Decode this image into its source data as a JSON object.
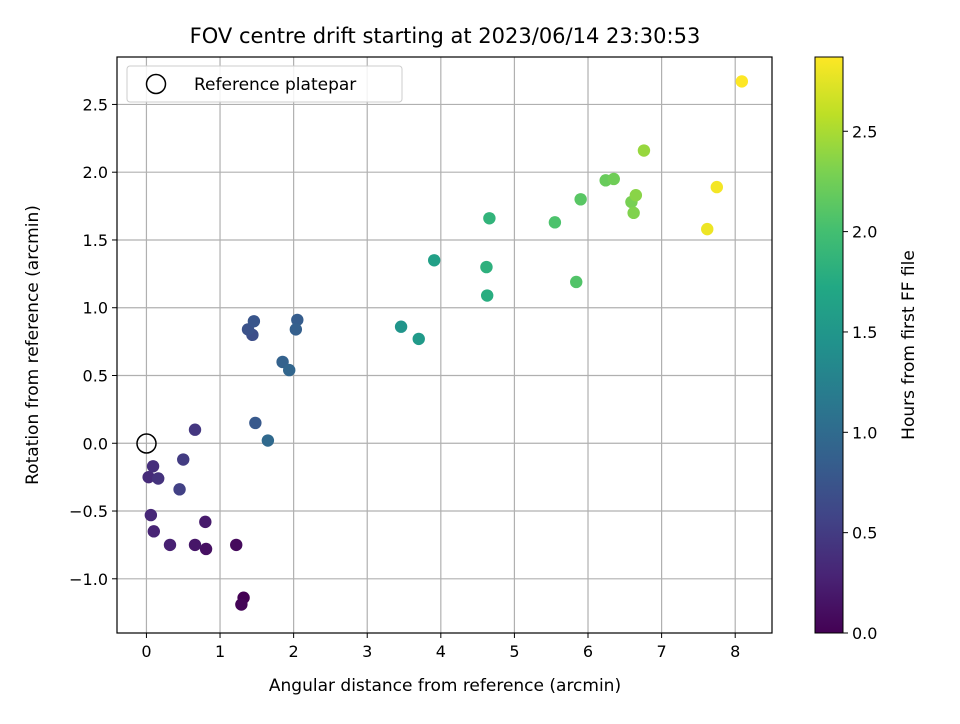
{
  "chart_data": {
    "type": "scatter",
    "title": "FOV centre drift starting at 2023/06/14 23:30:53",
    "xlabel": "Angular distance from reference (arcmin)",
    "ylabel": "Rotation from reference (arcmin)",
    "xlim": [
      -0.4,
      8.5
    ],
    "ylim": [
      -1.4,
      2.85
    ],
    "xticks": [
      0,
      1,
      2,
      3,
      4,
      5,
      6,
      7,
      8
    ],
    "xtick_labels": [
      "0",
      "1",
      "2",
      "3",
      "4",
      "5",
      "6",
      "7",
      "8"
    ],
    "yticks": [
      -1.0,
      -0.5,
      0.0,
      0.5,
      1.0,
      1.5,
      2.0,
      2.5
    ],
    "ytick_labels": [
      "−1.0",
      "−0.5",
      "0.0",
      "0.5",
      "1.0",
      "1.5",
      "2.0",
      "2.5"
    ],
    "grid": true,
    "legend": {
      "position": "top-left",
      "entries": [
        "Reference platepar"
      ]
    },
    "reference_point": {
      "x": 0,
      "y": 0
    },
    "colorbar": {
      "label": "Hours from first FF file",
      "colormap": "viridis",
      "range": [
        0,
        2.87
      ],
      "ticks": [
        0.0,
        0.5,
        1.0,
        1.5,
        2.0,
        2.5
      ],
      "tick_labels": [
        "0.0",
        "0.5",
        "1.0",
        "1.5",
        "2.0",
        "2.5"
      ]
    },
    "points": [
      {
        "x": 1.32,
        "y": -1.14,
        "c": 0.0
      },
      {
        "x": 1.29,
        "y": -1.19,
        "c": 0.03
      },
      {
        "x": 1.22,
        "y": -0.75,
        "c": 0.07
      },
      {
        "x": 0.81,
        "y": -0.78,
        "c": 0.12
      },
      {
        "x": 0.66,
        "y": -0.75,
        "c": 0.17
      },
      {
        "x": 0.8,
        "y": -0.58,
        "c": 0.21
      },
      {
        "x": 0.32,
        "y": -0.75,
        "c": 0.26
      },
      {
        "x": 0.1,
        "y": -0.65,
        "c": 0.29
      },
      {
        "x": 0.06,
        "y": -0.53,
        "c": 0.32
      },
      {
        "x": 0.03,
        "y": -0.25,
        "c": 0.35
      },
      {
        "x": 0.09,
        "y": -0.17,
        "c": 0.38
      },
      {
        "x": 0.16,
        "y": -0.26,
        "c": 0.42
      },
      {
        "x": 0.66,
        "y": 0.1,
        "c": 0.46
      },
      {
        "x": 0.5,
        "y": -0.12,
        "c": 0.5
      },
      {
        "x": 0.45,
        "y": -0.34,
        "c": 0.55
      },
      {
        "x": 1.44,
        "y": 0.8,
        "c": 0.68
      },
      {
        "x": 1.38,
        "y": 0.84,
        "c": 0.72
      },
      {
        "x": 1.46,
        "y": 0.9,
        "c": 0.76
      },
      {
        "x": 1.48,
        "y": 0.15,
        "c": 0.8
      },
      {
        "x": 2.05,
        "y": 0.91,
        "c": 0.84
      },
      {
        "x": 2.03,
        "y": 0.84,
        "c": 0.87
      },
      {
        "x": 1.85,
        "y": 0.6,
        "c": 0.9
      },
      {
        "x": 1.94,
        "y": 0.54,
        "c": 0.94
      },
      {
        "x": 1.65,
        "y": 0.02,
        "c": 0.98
      },
      {
        "x": 3.46,
        "y": 0.86,
        "c": 1.48
      },
      {
        "x": 3.7,
        "y": 0.77,
        "c": 1.55
      },
      {
        "x": 3.91,
        "y": 1.35,
        "c": 1.62
      },
      {
        "x": 4.63,
        "y": 1.09,
        "c": 1.78
      },
      {
        "x": 4.62,
        "y": 1.3,
        "c": 1.82
      },
      {
        "x": 4.66,
        "y": 1.66,
        "c": 1.86
      },
      {
        "x": 5.55,
        "y": 1.63,
        "c": 2.05
      },
      {
        "x": 5.84,
        "y": 1.19,
        "c": 2.08
      },
      {
        "x": 5.9,
        "y": 1.8,
        "c": 2.12
      },
      {
        "x": 6.24,
        "y": 1.94,
        "c": 2.2
      },
      {
        "x": 6.35,
        "y": 1.95,
        "c": 2.24
      },
      {
        "x": 6.59,
        "y": 1.78,
        "c": 2.28
      },
      {
        "x": 6.62,
        "y": 1.7,
        "c": 2.32
      },
      {
        "x": 6.65,
        "y": 1.83,
        "c": 2.36
      },
      {
        "x": 6.76,
        "y": 2.16,
        "c": 2.42
      },
      {
        "x": 7.62,
        "y": 1.58,
        "c": 2.8
      },
      {
        "x": 7.75,
        "y": 1.89,
        "c": 2.83
      },
      {
        "x": 8.09,
        "y": 2.67,
        "c": 2.87
      }
    ]
  }
}
